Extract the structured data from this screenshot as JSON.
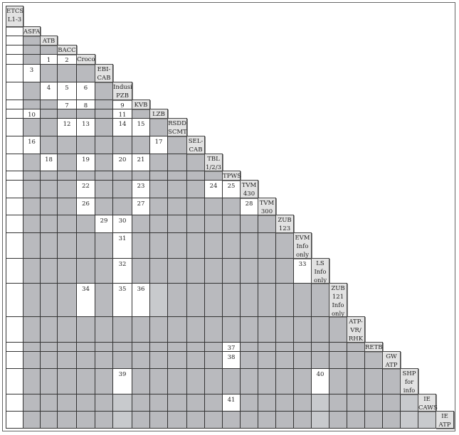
{
  "matrix": {
    "systems": [
      "ETCS\nL1-3",
      "ASFA",
      "ATB",
      "BACC",
      "Croco",
      "EBI-\nCAB",
      "Indusi\nPZB",
      "KVB",
      "LZB",
      "RSDD\nSCMT",
      "SEL-\nCAB",
      "TBL\n1/2/3",
      "TPWS",
      "TVM\n430",
      "TVM\n300",
      "ZUB\n123",
      "EVM\nInfo\nonly",
      "LS\nInfo\nonly",
      "ZUB\n121\nInfo\nonly",
      "ATP-\nVR/\nRHK",
      "RETB",
      "GW\nATP",
      "SHP\nfor\ninfo",
      "IE\nCAWS",
      "IE\nATP"
    ],
    "cell_legend": {
      "": "white blank",
      "x": "shaded",
      "l": "light shaded"
    },
    "rows": [
      [],
      [
        ""
      ],
      [
        "",
        "x"
      ],
      [
        "",
        "x",
        "x"
      ],
      [
        "",
        "x",
        "1",
        "2"
      ],
      [
        "",
        "3",
        "x",
        "x",
        "x"
      ],
      [
        "",
        "x",
        "4",
        "5",
        "6",
        "x"
      ],
      [
        "",
        "x",
        "x",
        "7",
        "8",
        "x",
        "9"
      ],
      [
        "",
        "10",
        "x",
        "x",
        "x",
        "x",
        "11",
        "x"
      ],
      [
        "",
        "x",
        "x",
        "12",
        "13",
        "x",
        "14",
        "15",
        "x"
      ],
      [
        "",
        "16",
        "x",
        "x",
        "x",
        "x",
        "x",
        "x",
        "17",
        "x"
      ],
      [
        "",
        "x",
        "18",
        "x",
        "19",
        "x",
        "20",
        "21",
        "x",
        "x",
        "x"
      ],
      [
        "",
        "x",
        "x",
        "x",
        "x",
        "x",
        "x",
        "x",
        "x",
        "x",
        "x",
        "x"
      ],
      [
        "",
        "x",
        "x",
        "x",
        "22",
        "x",
        "x",
        "23",
        "x",
        "x",
        "x",
        "24",
        "25"
      ],
      [
        "",
        "x",
        "x",
        "x",
        "26",
        "x",
        "x",
        "27",
        "x",
        "x",
        "x",
        "x",
        "x",
        "28"
      ],
      [
        "",
        "x",
        "x",
        "x",
        "x",
        "29",
        "30",
        "x",
        "x",
        "x",
        "x",
        "x",
        "x",
        "x",
        "x"
      ],
      [
        "",
        "x",
        "x",
        "x",
        "x",
        "x",
        "31",
        "x",
        "x",
        "x",
        "x",
        "x",
        "x",
        "x",
        "x",
        "x"
      ],
      [
        "",
        "x",
        "x",
        "x",
        "x",
        "x",
        "32",
        "x",
        "x",
        "x",
        "x",
        "x",
        "x",
        "x",
        "x",
        "x",
        "33"
      ],
      [
        "",
        "x",
        "x",
        "x",
        "34",
        "x",
        "35",
        "36",
        "l",
        "x",
        "x",
        "x",
        "x",
        "x",
        "x",
        "x",
        "x",
        "x"
      ],
      [
        "",
        "x",
        "x",
        "x",
        "x",
        "x",
        "x",
        "x",
        "x",
        "x",
        "x",
        "x",
        "x",
        "x",
        "x",
        "x",
        "x",
        "x",
        "x"
      ],
      [
        "",
        "x",
        "x",
        "x",
        "x",
        "x",
        "x",
        "x",
        "x",
        "x",
        "x",
        "x",
        "37",
        "x",
        "x",
        "x",
        "x",
        "x",
        "x",
        "x"
      ],
      [
        "",
        "x",
        "x",
        "x",
        "x",
        "x",
        "x",
        "x",
        "x",
        "x",
        "x",
        "x",
        "38",
        "x",
        "x",
        "x",
        "x",
        "x",
        "x",
        "x",
        "x"
      ],
      [
        "",
        "x",
        "x",
        "x",
        "x",
        "x",
        "39",
        "x",
        "x",
        "x",
        "x",
        "x",
        "x",
        "x",
        "x",
        "x",
        "x",
        "40",
        "x",
        "x",
        "x",
        "x"
      ],
      [
        "",
        "x",
        "x",
        "x",
        "x",
        "x",
        "l",
        "x",
        "x",
        "x",
        "x",
        "x",
        "41",
        "x",
        "x",
        "x",
        "x",
        "l",
        "x",
        "x",
        "x",
        "x",
        "l"
      ],
      [
        "",
        "x",
        "x",
        "x",
        "x",
        "x",
        "l",
        "x",
        "x",
        "x",
        "x",
        "x",
        "x",
        "x",
        "x",
        "x",
        "x",
        "l",
        "x",
        "x",
        "x",
        "x",
        "l",
        "l"
      ]
    ]
  }
}
